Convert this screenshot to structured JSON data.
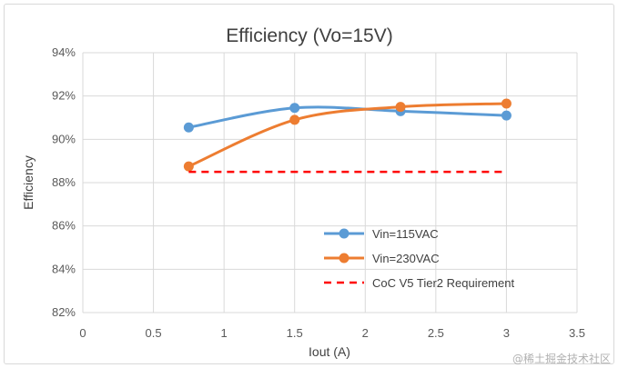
{
  "chart_data": {
    "type": "line",
    "title": "Efficiency (Vo=15V)",
    "xlabel": "Iout (A)",
    "ylabel": "Efficiency",
    "xlim": [
      0,
      3.5
    ],
    "ylim": [
      82,
      94
    ],
    "x_ticks": [
      "0",
      "0.5",
      "1",
      "1.5",
      "2",
      "2.5",
      "3",
      "3.5"
    ],
    "y_ticks": [
      "82%",
      "84%",
      "86%",
      "88%",
      "90%",
      "92%",
      "94%"
    ],
    "grid": true,
    "legend_position": "bottom-right",
    "series": [
      {
        "name": "Vin=115VAC",
        "color": "#5b9bd5",
        "style": "smooth-line-markers",
        "x": [
          0.75,
          1.5,
          2.25,
          3.0
        ],
        "y": [
          90.55,
          91.45,
          91.3,
          91.1
        ]
      },
      {
        "name": "Vin=230VAC",
        "color": "#ed7d31",
        "style": "smooth-line-markers",
        "x": [
          0.75,
          1.5,
          2.25,
          3.0
        ],
        "y": [
          88.75,
          90.9,
          91.5,
          91.65
        ]
      },
      {
        "name": "CoC V5 Tier2 Requirement",
        "color": "#ff0000",
        "style": "dashed",
        "x": [
          0.75,
          3.0
        ],
        "y": [
          88.5,
          88.5
        ]
      }
    ]
  },
  "watermark": "@稀土掘金技术社区"
}
